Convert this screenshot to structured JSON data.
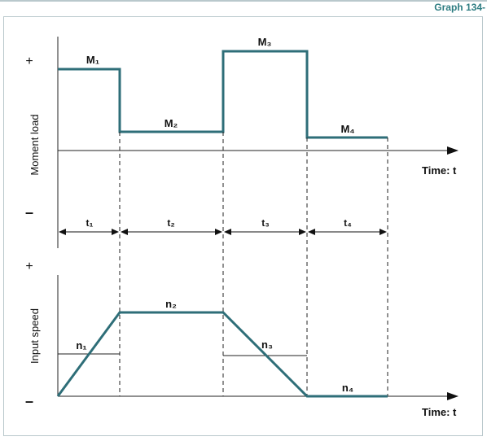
{
  "header": {
    "graph_id": "Graph 134-"
  },
  "colors": {
    "curve": "#2e6e78",
    "axis": "#222222",
    "frame": "#b9c8cc",
    "tag": "#2e7d82"
  },
  "top_chart": {
    "ylabel": "Moment load",
    "plus": "+",
    "minus": "–",
    "xlabel": "Time: t",
    "segments": [
      "M₁",
      "M₂",
      "M₃",
      "M₄"
    ],
    "intervals": [
      "t₁",
      "t₂",
      "t₃",
      "t₄"
    ]
  },
  "bottom_chart": {
    "ylabel": "Input speed",
    "plus": "+",
    "minus": "–",
    "xlabel": "Time: t",
    "segments": [
      "n₁",
      "n₂",
      "n₃",
      "n₄"
    ]
  }
}
